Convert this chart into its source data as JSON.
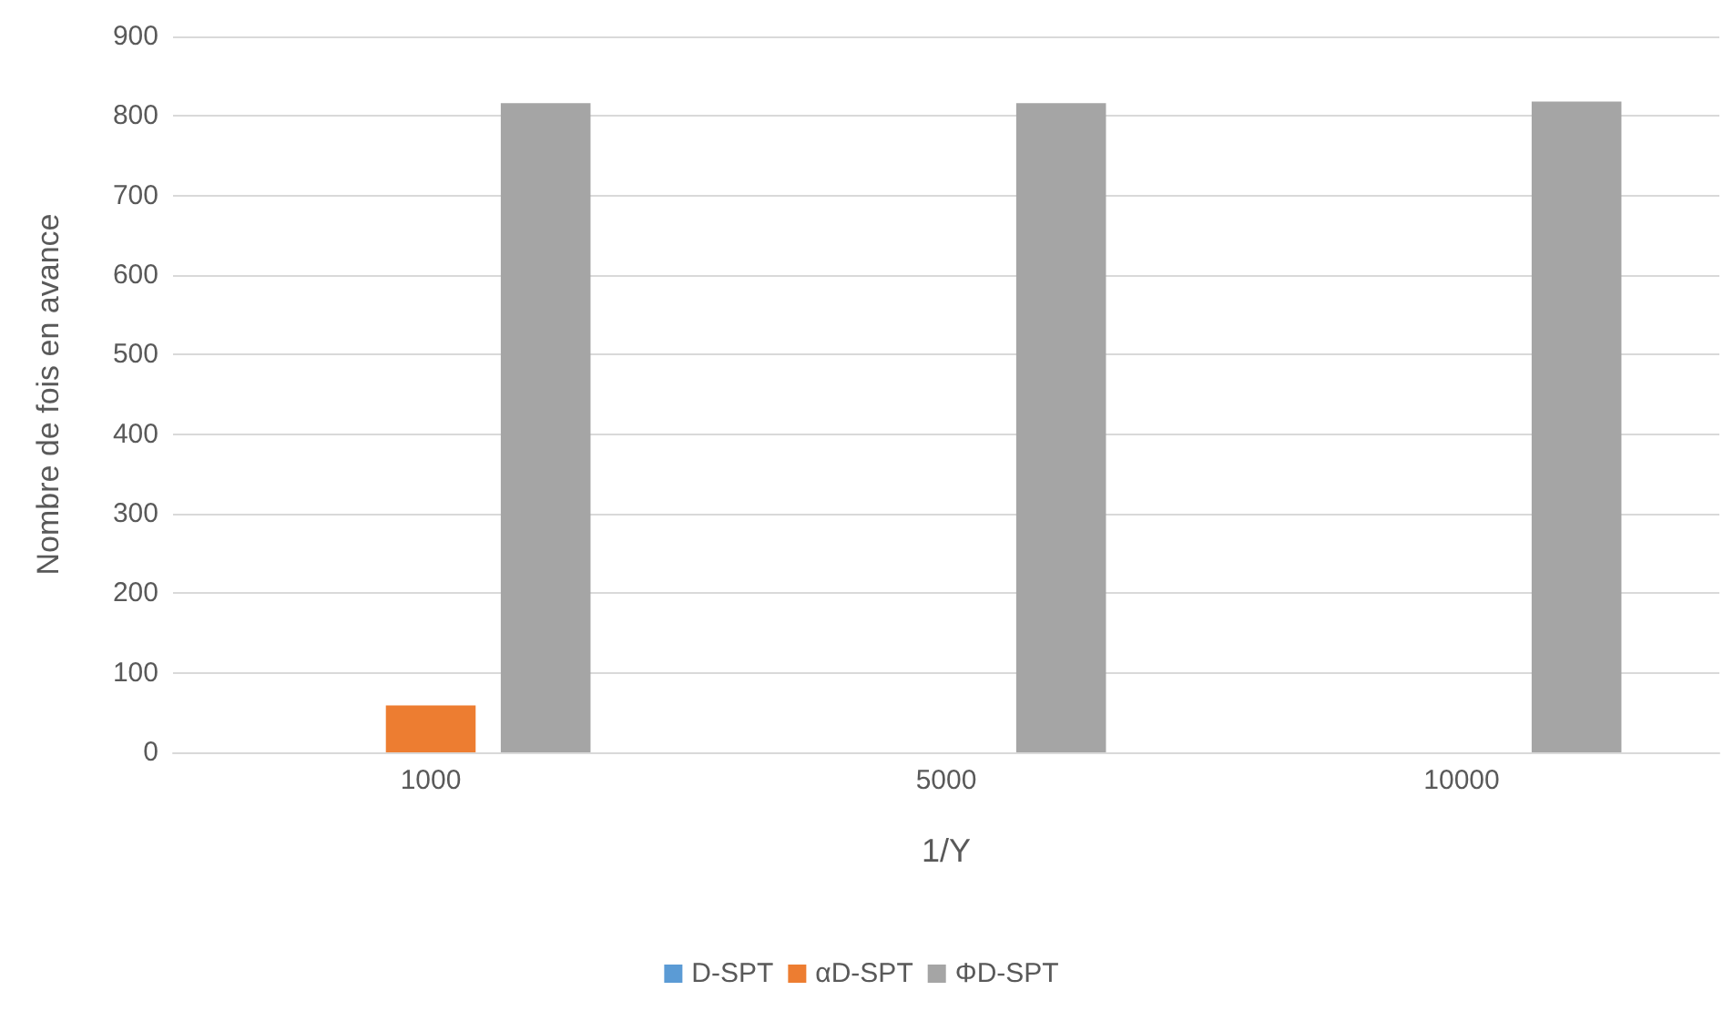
{
  "chart_data": {
    "type": "bar",
    "xlabel": "1/Y",
    "ylabel": "Nombre de fois en avance",
    "categories": [
      "1000",
      "5000",
      "10000"
    ],
    "series": [
      {
        "name": "D-SPT",
        "color": "#5b9bd5",
        "values": [
          0,
          0,
          0
        ]
      },
      {
        "name": "αD-SPT",
        "color": "#ed7d31",
        "values": [
          59,
          0,
          0
        ]
      },
      {
        "name": "ΦD-SPT",
        "color": "#a5a5a5",
        "values": [
          816,
          816,
          818
        ]
      }
    ],
    "ylim": [
      0,
      900
    ],
    "yticks": [
      0,
      100,
      200,
      300,
      400,
      500,
      600,
      700,
      800,
      900
    ],
    "grid": "y",
    "legend": "bottom"
  }
}
